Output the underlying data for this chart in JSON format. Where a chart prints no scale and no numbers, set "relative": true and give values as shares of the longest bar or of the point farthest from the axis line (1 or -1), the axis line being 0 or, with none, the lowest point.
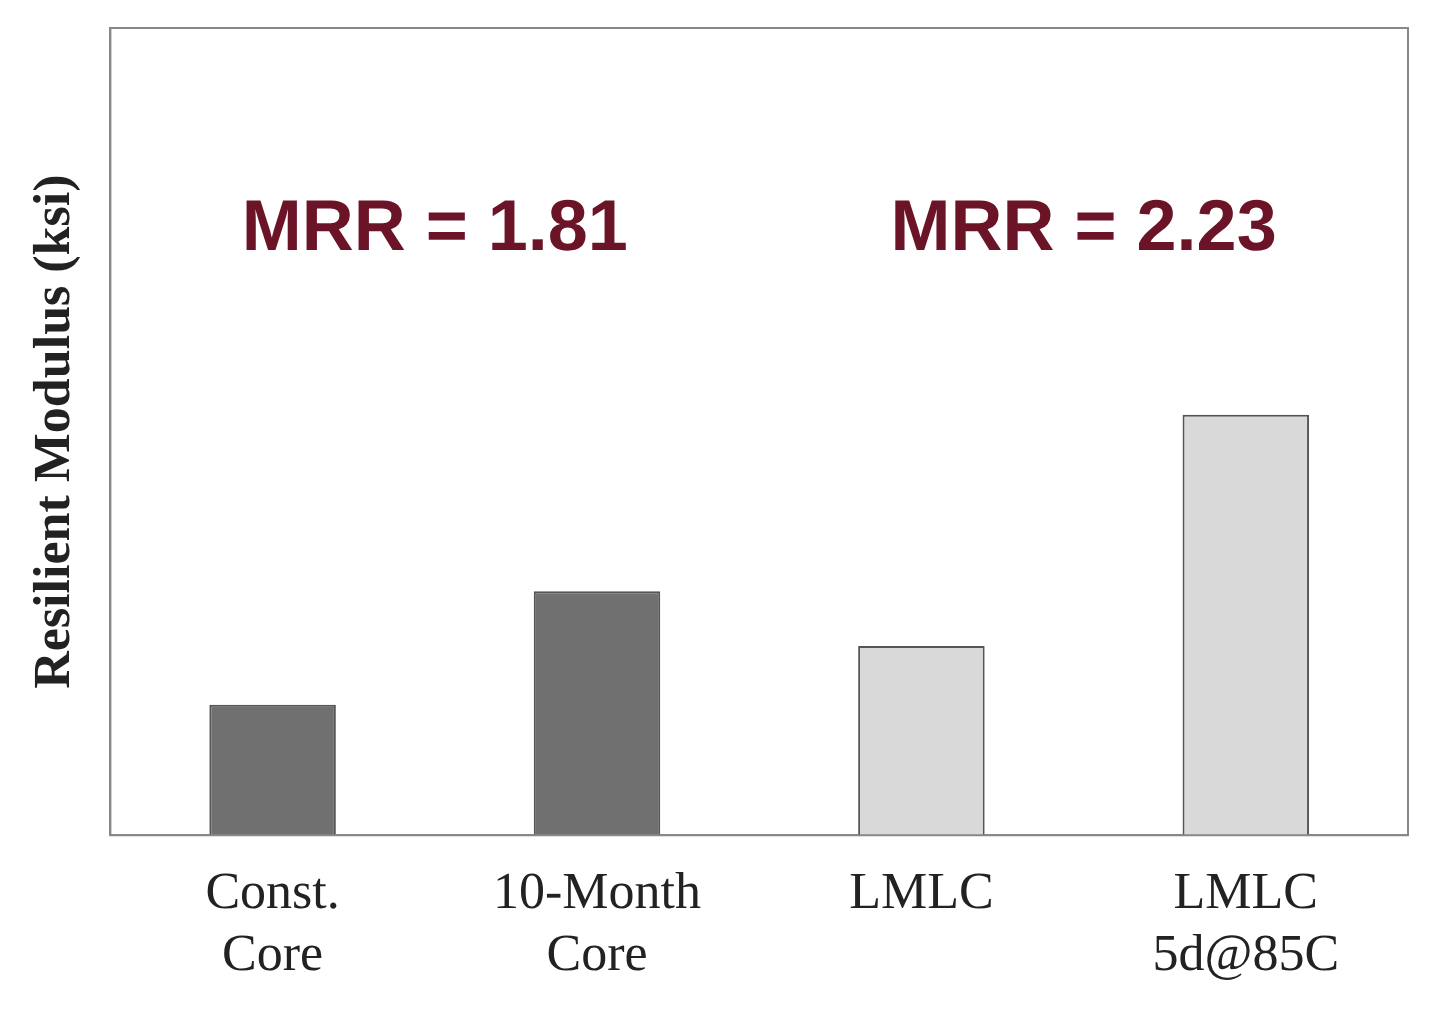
{
  "chart_data": {
    "type": "bar",
    "relative": true,
    "ylabel": "Resilient Modulus (ksi)",
    "categories": [
      "Const. Core",
      "10-Month Core",
      "LMLC",
      "LMLC 5d@85C"
    ],
    "values": [
      0.31,
      0.58,
      0.45,
      1
    ],
    "colors": [
      "#707070",
      "#707070",
      "#d9d9d9",
      "#d9d9d9"
    ],
    "annotations": [
      "MRR = 1.81",
      "MRR = 2.23"
    ],
    "grid": false,
    "legend": false
  }
}
